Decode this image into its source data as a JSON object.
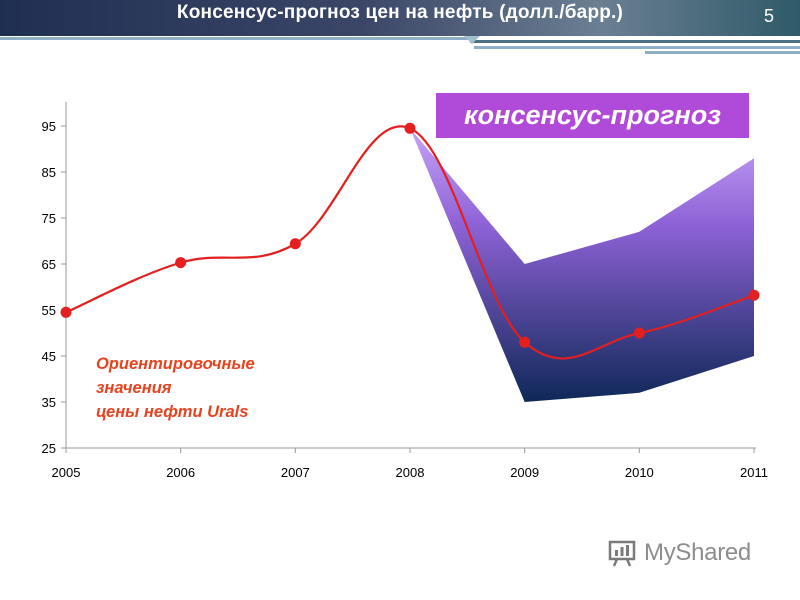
{
  "slide": {
    "title": "Консенсус-прогноз цен на нефть (долл./барр.)",
    "number": "5"
  },
  "colors": {
    "title_bar": "#2f3c5c",
    "line": "#e31f1f",
    "marker": "#e31f1f",
    "band_top": "#c7a3f7",
    "band_bottom": "#0f2858",
    "legend_box": "#b04ad9",
    "annotation": "#e8431e"
  },
  "legend": {
    "forecast_label": "консенсус-прогноз"
  },
  "annotation": {
    "line1": "Ориентировочные",
    "line2": "значения",
    "line3": "цены нефти Urals"
  },
  "watermark": {
    "text": "MyShared",
    "icon": "myshared-logo-icon"
  },
  "chart_data": {
    "type": "line",
    "categories": [
      "2005",
      "2006",
      "2007",
      "2008",
      "2009",
      "2010",
      "2011"
    ],
    "ylim": [
      25,
      95
    ],
    "yticks": [
      "25",
      "35",
      "45",
      "55",
      "65",
      "75",
      "85",
      "95"
    ],
    "grid": false,
    "series": [
      {
        "name": "Ориентировочные значения цены нефти Urals",
        "values": [
          54.5,
          65.3,
          69.4,
          94.5,
          48.0,
          50.0,
          58.2
        ]
      }
    ],
    "forecast_band": {
      "name": "консенсус-прогноз",
      "x_index": [
        3,
        4,
        5,
        6
      ],
      "upper": [
        94.5,
        65.0,
        72.0,
        88.0
      ],
      "lower": [
        94.5,
        35.0,
        37.0,
        45.0
      ]
    }
  }
}
